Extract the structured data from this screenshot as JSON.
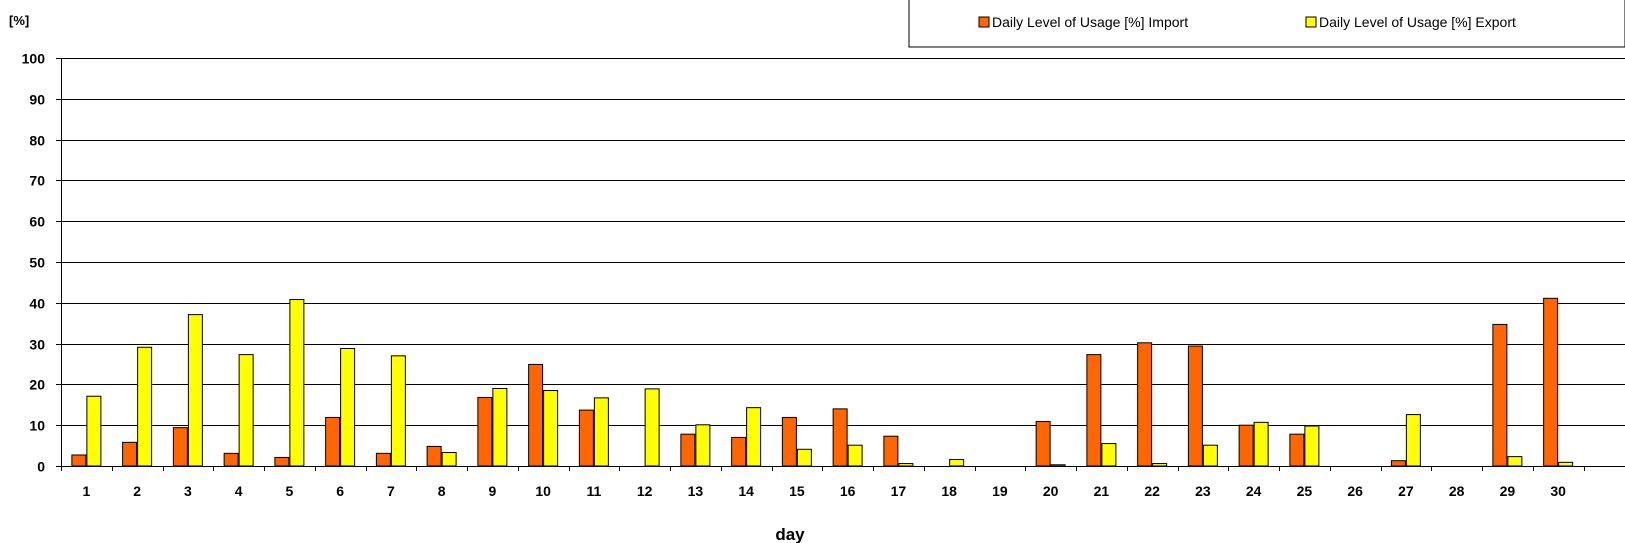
{
  "chart_data": {
    "type": "bar",
    "ylabel": "[%]",
    "xlabel": "day",
    "ylim": [
      0,
      100
    ],
    "yticks": [
      0,
      10,
      20,
      30,
      40,
      50,
      60,
      70,
      80,
      90,
      100
    ],
    "grid": true,
    "legend_position": "top-right",
    "categories": [
      "1",
      "2",
      "3",
      "4",
      "5",
      "6",
      "7",
      "8",
      "9",
      "10",
      "11",
      "12",
      "13",
      "14",
      "15",
      "16",
      "17",
      "18",
      "19",
      "20",
      "21",
      "22",
      "23",
      "24",
      "25",
      "26",
      "27",
      "28",
      "29",
      "30"
    ],
    "series": [
      {
        "name": "Daily Level of Usage [%] Import",
        "color": "#ff6600",
        "values": [
          2.7,
          5.8,
          9.4,
          3.1,
          2.1,
          11.9,
          3.1,
          4.8,
          16.8,
          24.9,
          13.7,
          0,
          7.8,
          7.0,
          11.9,
          14.0,
          7.3,
          0,
          0,
          10.9,
          27.3,
          30.2,
          29.4,
          10.0,
          7.8,
          0,
          1.3,
          0,
          34.7,
          41.1
        ]
      },
      {
        "name": "Daily Level of Usage [%] Export",
        "color": "#ffff00",
        "values": [
          17.1,
          29.1,
          37.1,
          27.3,
          40.8,
          28.8,
          27.0,
          3.3,
          19.0,
          18.5,
          16.7,
          18.9,
          10.1,
          14.3,
          4.1,
          5.1,
          0.6,
          1.6,
          0,
          0.3,
          5.5,
          0.6,
          5.1,
          10.7,
          9.8,
          0,
          12.6,
          0,
          2.3,
          0.9
        ]
      }
    ]
  }
}
